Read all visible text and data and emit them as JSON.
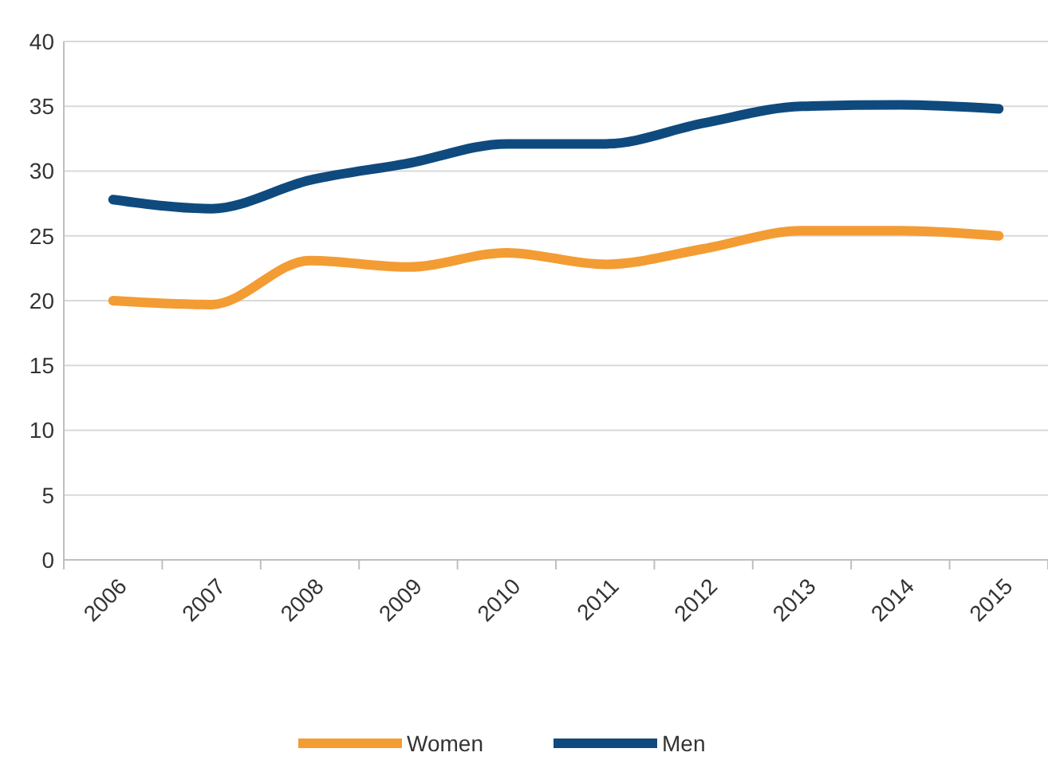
{
  "chart_data": {
    "type": "line",
    "categories": [
      "2006",
      "2007",
      "2008",
      "2009",
      "2010",
      "2011",
      "2012",
      "2013",
      "2014",
      "2015"
    ],
    "series": [
      {
        "name": "Women",
        "color": "#f39c33",
        "values": [
          20,
          19.7,
          23.1,
          22.6,
          23.7,
          22.8,
          24,
          25.4,
          25.4,
          25
        ]
      },
      {
        "name": "Men",
        "color": "#0f4a7e",
        "values": [
          27.8,
          27.1,
          29.3,
          30.6,
          32.1,
          32.1,
          33.7,
          35,
          35.1,
          34.8
        ]
      }
    ],
    "ylim": [
      0,
      40
    ],
    "yticks": [
      0,
      5,
      10,
      15,
      20,
      25,
      30,
      35,
      40
    ],
    "grid": "y",
    "legend": "bottom",
    "marker": "none",
    "line_style": "solid"
  }
}
